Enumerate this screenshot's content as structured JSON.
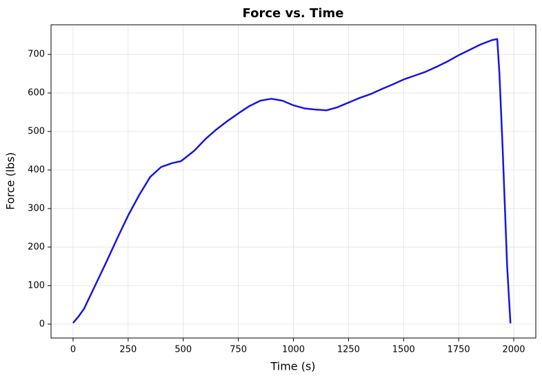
{
  "chart_data": {
    "type": "line",
    "title": "Force vs. Time",
    "x_label": "Time (s)",
    "y_label": "Force (lbs)",
    "x": [
      0,
      25,
      50,
      100,
      150,
      200,
      250,
      300,
      350,
      400,
      450,
      490,
      550,
      600,
      650,
      700,
      750,
      800,
      850,
      900,
      950,
      1000,
      1050,
      1100,
      1150,
      1200,
      1250,
      1300,
      1350,
      1400,
      1450,
      1500,
      1550,
      1600,
      1650,
      1700,
      1750,
      1800,
      1850,
      1900,
      1925,
      1935,
      1950,
      1970,
      1985
    ],
    "series": [
      {
        "name": "Force",
        "color": "#1414e6",
        "values": [
          3,
          20,
          40,
          100,
          160,
          222,
          282,
          335,
          382,
          408,
          418,
          423,
          450,
          480,
          505,
          527,
          547,
          566,
          580,
          585,
          580,
          568,
          560,
          557,
          555,
          563,
          575,
          587,
          597,
          610,
          622,
          635,
          645,
          655,
          668,
          682,
          698,
          712,
          726,
          737,
          740,
          650,
          450,
          150,
          2
        ]
      }
    ],
    "xlim": [
      -100,
      2100
    ],
    "ylim": [
      -36,
      777
    ],
    "xticks": [
      0,
      250,
      500,
      750,
      1000,
      1250,
      1500,
      1750,
      2000
    ],
    "yticks": [
      0,
      100,
      200,
      300,
      400,
      500,
      600,
      700
    ],
    "grid": true
  }
}
